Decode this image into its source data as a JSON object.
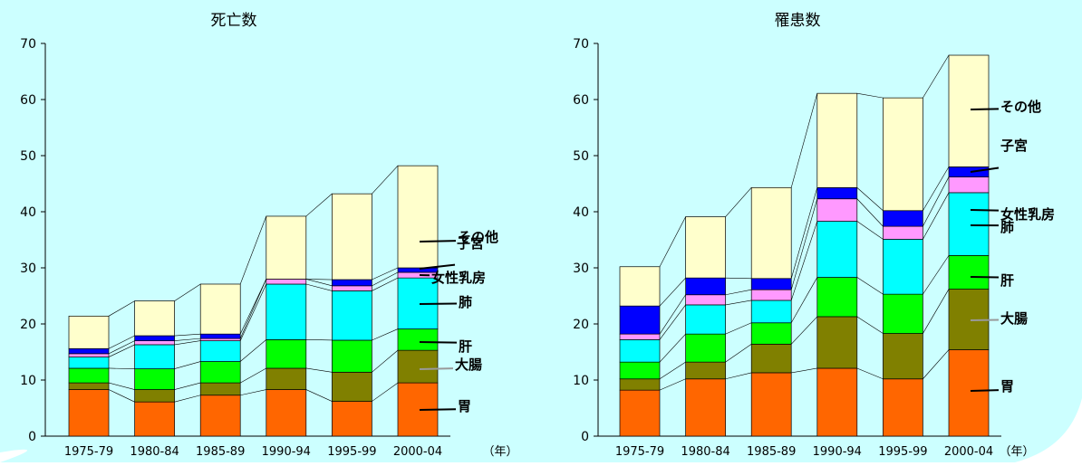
{
  "colors": {
    "background": "#ccffff",
    "胃": "#ff6600",
    "大腸": "#808000",
    "肝": "#00ff00",
    "肺": "#00ffff",
    "女性乳房": "#ff99ff",
    "子宮": "#0000ff",
    "その他": "#ffffcc"
  },
  "chart_data": [
    {
      "type": "bar",
      "stacked": true,
      "title": "死亡数",
      "categories": [
        "1975-79",
        "1980-84",
        "1985-89",
        "1990-94",
        "1995-99",
        "2000-04"
      ],
      "x_unit": "（年）",
      "ylim": [
        0,
        70
      ],
      "yticks": [
        0,
        10,
        20,
        30,
        40,
        50,
        60,
        70
      ],
      "grid": false,
      "legend": "inline-right",
      "series": [
        {
          "name": "胃",
          "values": [
            8.3,
            6.1,
            7.3,
            8.3,
            6.2,
            9.5
          ]
        },
        {
          "name": "大腸",
          "values": [
            1.2,
            2.2,
            2.2,
            3.8,
            5.2,
            5.8
          ]
        },
        {
          "name": "肝",
          "values": [
            2.6,
            3.7,
            3.8,
            5.1,
            5.7,
            3.8
          ]
        },
        {
          "name": "肺",
          "values": [
            2.0,
            4.3,
            3.7,
            9.9,
            8.8,
            9.1
          ]
        },
        {
          "name": "女性乳房",
          "values": [
            0.6,
            0.7,
            0.4,
            0.9,
            0.9,
            1.0
          ]
        },
        {
          "name": "子宮",
          "values": [
            0.9,
            0.9,
            0.8,
            0.0,
            1.1,
            0.8
          ]
        },
        {
          "name": "その他",
          "values": [
            5.8,
            6.2,
            8.9,
            11.2,
            15.3,
            18.2
          ]
        }
      ]
    },
    {
      "type": "bar",
      "stacked": true,
      "title": "罹患数",
      "categories": [
        "1975-79",
        "1980-84",
        "1985-89",
        "1990-94",
        "1995-99",
        "2000-04"
      ],
      "x_unit": "（年）",
      "ylim": [
        0,
        70
      ],
      "yticks": [
        0,
        10,
        20,
        30,
        40,
        50,
        60,
        70
      ],
      "grid": false,
      "legend": "inline-right",
      "series": [
        {
          "name": "胃",
          "values": [
            8.2,
            10.2,
            11.3,
            12.1,
            10.2,
            15.4
          ]
        },
        {
          "name": "大腸",
          "values": [
            2.0,
            3.0,
            5.1,
            9.2,
            8.1,
            10.8
          ]
        },
        {
          "name": "肝",
          "values": [
            3.0,
            5.0,
            3.8,
            7.0,
            7.0,
            6.0
          ]
        },
        {
          "name": "肺",
          "values": [
            4.0,
            5.2,
            4.0,
            10.0,
            9.8,
            11.2
          ]
        },
        {
          "name": "女性乳房",
          "values": [
            1.0,
            1.8,
            1.9,
            4.0,
            2.3,
            2.8
          ]
        },
        {
          "name": "子宮",
          "values": [
            5.0,
            3.0,
            2.0,
            2.0,
            2.8,
            1.8
          ]
        },
        {
          "name": "その他",
          "values": [
            7.0,
            10.9,
            16.2,
            16.8,
            20.1,
            19.9
          ]
        }
      ]
    }
  ]
}
